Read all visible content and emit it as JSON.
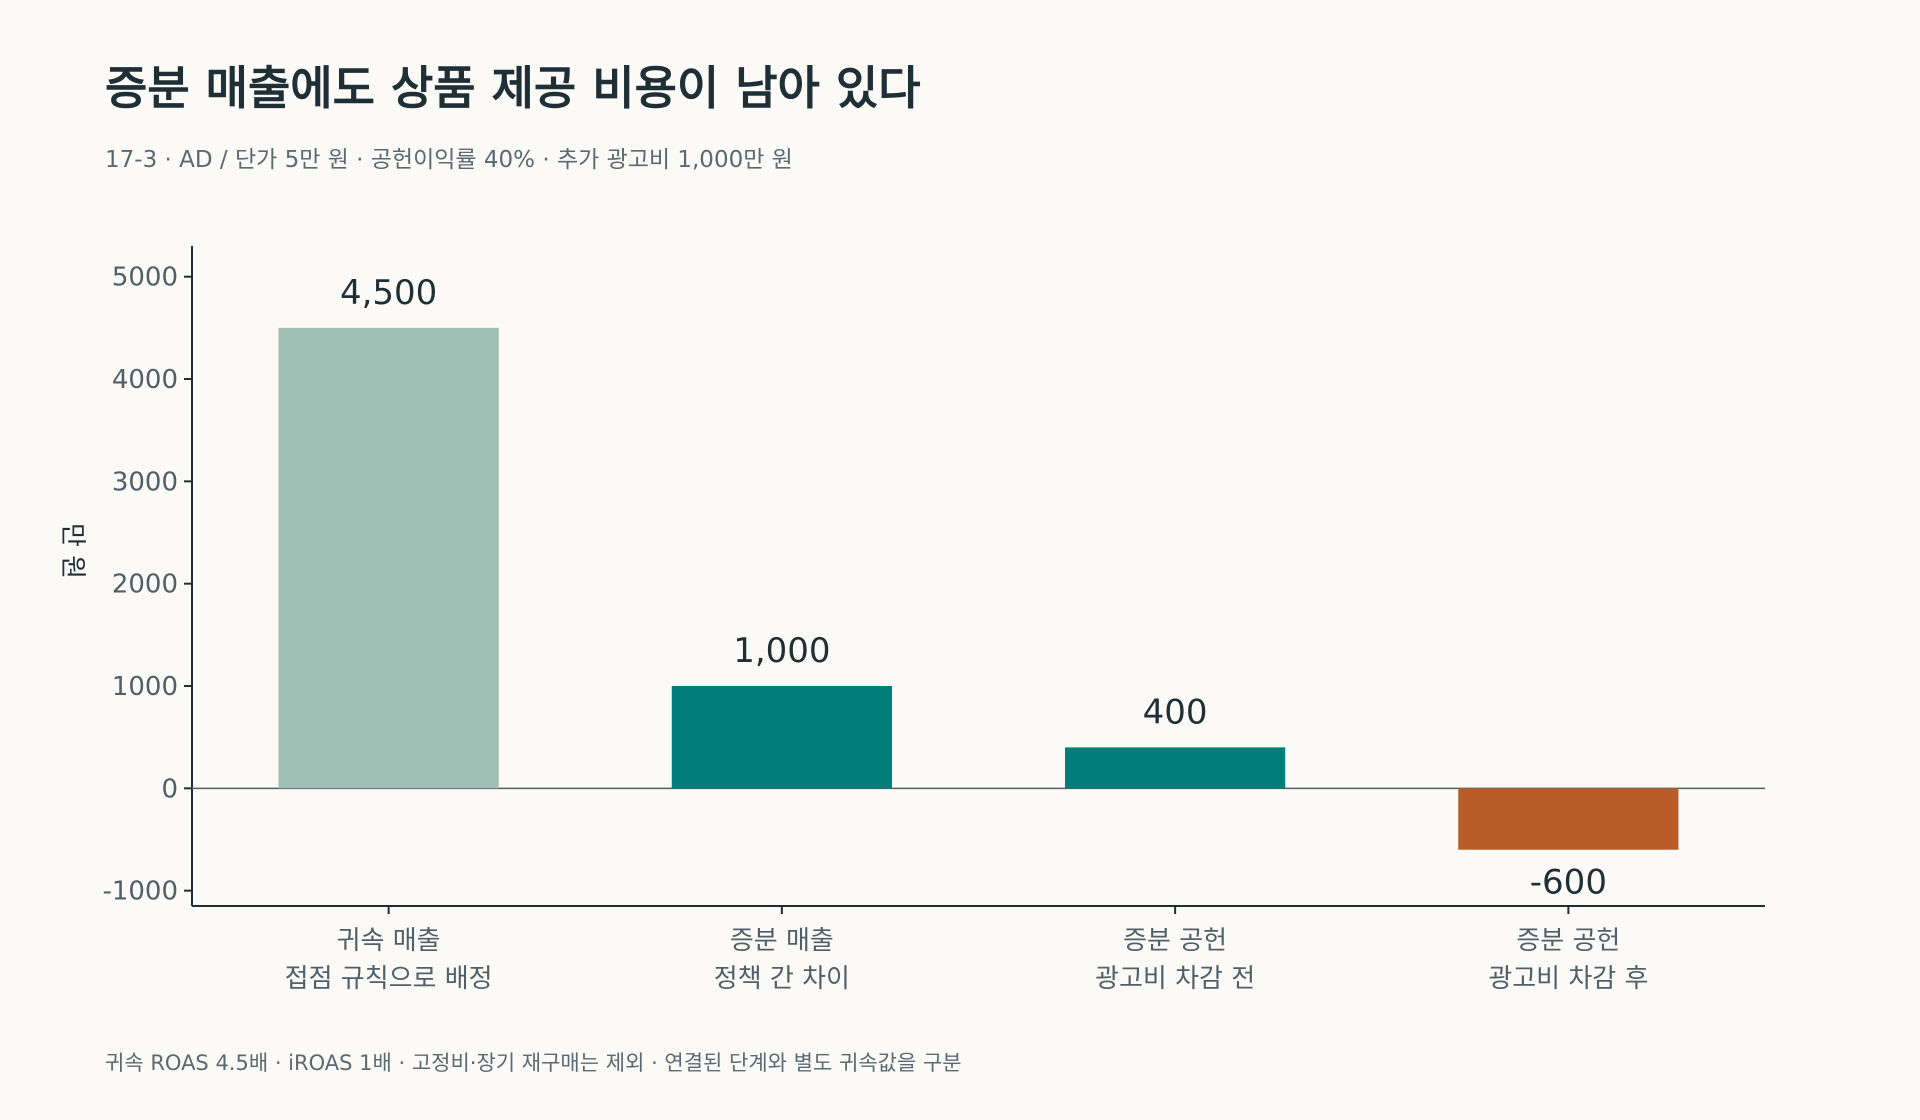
{
  "header": {
    "title": "증분 매출에도 상품 제공 비용이 남아 있다",
    "subtitle": "17-3 · AD / 단가 5만 원 · 공헌이익률 40% · 추가 광고비 1,000만 원"
  },
  "footnote": "귀속 ROAS 4.5배 · iROAS 1배 · 고정비·장기 재구매는 제외 · 연결된 단계와 별도 귀속값을 구분",
  "chart_data": {
    "type": "bar",
    "title": "증분 매출에도 상품 제공 비용이 남아 있다",
    "subtitle": "17-3 · AD / 단가 5만 원 · 공헌이익률 40% · 추가 광고비 1,000만 원",
    "ylabel": "만 원",
    "xlabel": "",
    "ylim": [
      -1150,
      5300
    ],
    "yticks": [
      -1000,
      0,
      1000,
      2000,
      3000,
      4000,
      5000
    ],
    "categories": [
      [
        "귀속 매출",
        "접점 규칙으로 배정"
      ],
      [
        "증분 매출",
        "정책 간 차이"
      ],
      [
        "증분 공헌",
        "광고비 차감 전"
      ],
      [
        "증분 공헌",
        "광고비 차감 후"
      ]
    ],
    "values": [
      4500,
      1000,
      400,
      -600
    ],
    "value_labels": [
      "4,500",
      "1,000",
      "400",
      "-600"
    ],
    "colors": [
      "#9fbfb5",
      "#007f7a",
      "#007f7a",
      "#b85c28"
    ],
    "grid": false,
    "legend": "none"
  }
}
